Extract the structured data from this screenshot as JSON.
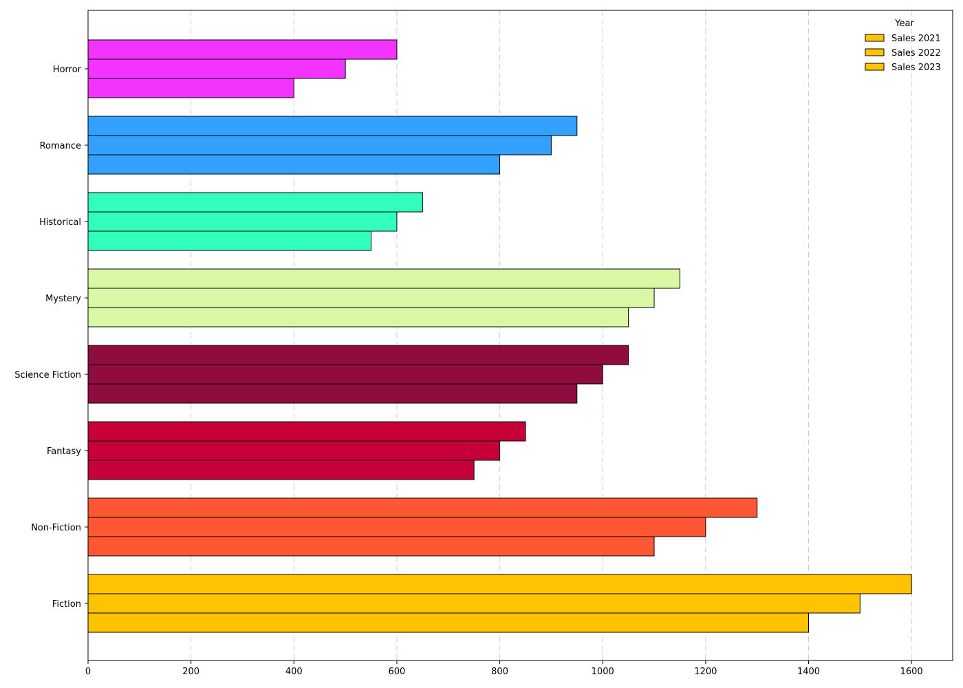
{
  "chart_data": {
    "type": "bar",
    "orientation": "horizontal",
    "categories": [
      "Fiction",
      "Non-Fiction",
      "Fantasy",
      "Science Fiction",
      "Mystery",
      "Historical",
      "Romance",
      "Horror"
    ],
    "category_colors": [
      "#FFC300",
      "#FF5733",
      "#C70039",
      "#900C3F",
      "#DAF7A6",
      "#33FFBD",
      "#33A1FF",
      "#F333FF"
    ],
    "series": [
      {
        "name": "Sales 2021",
        "values": [
          1400,
          1100,
          750,
          950,
          1050,
          550,
          800,
          400
        ]
      },
      {
        "name": "Sales 2022",
        "values": [
          1500,
          1200,
          800,
          1000,
          1100,
          600,
          900,
          500
        ]
      },
      {
        "name": "Sales 2023",
        "values": [
          1600,
          1300,
          850,
          1050,
          1150,
          650,
          950,
          600
        ]
      }
    ],
    "x_ticks": [
      0,
      200,
      400,
      600,
      800,
      1000,
      1200,
      1400,
      1600
    ],
    "xlim": [
      0,
      1680
    ],
    "grid": "x-dashed",
    "legend": {
      "title": "Year",
      "placement": "top-right",
      "swatch_color": "#FFC300"
    }
  }
}
